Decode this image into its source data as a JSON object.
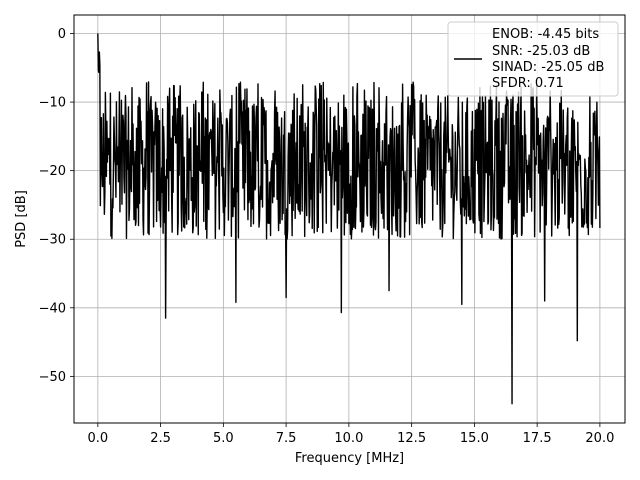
{
  "chart_data": {
    "type": "line",
    "title": "",
    "xlabel": "Frequency [MHz]",
    "ylabel": "PSD [dB]",
    "xlim": [
      -0.95,
      21.0
    ],
    "ylim": [
      -56.8,
      2.7
    ],
    "xticks": [
      0.0,
      2.5,
      5.0,
      7.5,
      10.0,
      12.5,
      15.0,
      17.5,
      20.0
    ],
    "xtick_labels": [
      "0.0",
      "2.5",
      "5.0",
      "7.5",
      "10.0",
      "12.5",
      "15.0",
      "17.5",
      "20.0"
    ],
    "yticks": [
      0,
      -10,
      -20,
      -30,
      -40,
      -50
    ],
    "ytick_labels": [
      "0",
      "−10",
      "−20",
      "−30",
      "−40",
      "−50"
    ],
    "grid": true,
    "legend": {
      "placement": "upper-right",
      "entries": [
        "ENOB: -4.45 bits",
        "SNR: -25.03 dB",
        "SINAD: -25.05 dB",
        "SFDR: 0.71"
      ]
    },
    "series": [
      {
        "color": "#000000",
        "description_range": {
          "x_start": 0.0,
          "x_end": 20.0,
          "x_step": 0.02
        },
        "upper_envelope_db": {
          "start": -5,
          "typical": -9,
          "end": -11
        },
        "lower_envelope_db": {
          "typical": -30
        },
        "peak": {
          "x": 0.0,
          "y": 0.0
        },
        "deep_nulls": [
          {
            "x": 2.7,
            "y": -41.5
          },
          {
            "x": 5.5,
            "y": -39.2
          },
          {
            "x": 9.7,
            "y": -40.7
          },
          {
            "x": 14.5,
            "y": -39.5
          },
          {
            "x": 16.5,
            "y": -54.0
          },
          {
            "x": 19.1,
            "y": -44.8
          },
          {
            "x": 17.8,
            "y": -39.0
          },
          {
            "x": 7.5,
            "y": -38.5
          },
          {
            "x": 11.6,
            "y": -37.5
          }
        ]
      }
    ]
  }
}
